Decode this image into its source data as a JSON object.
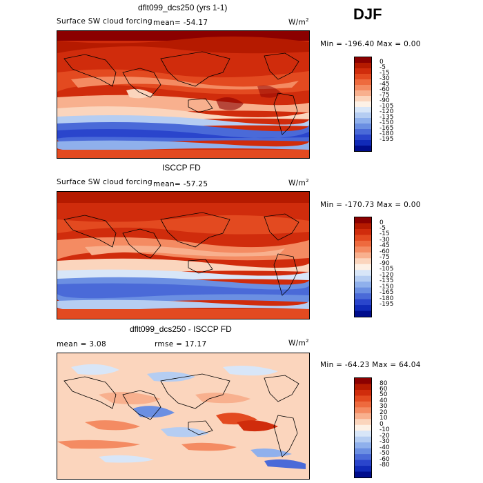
{
  "season": "DJF",
  "panels": [
    {
      "title": "dflt099_dcs250 (yrs 1-1)",
      "variable": "Surface SW cloud forcing",
      "mean_text": "mean=  -54.17",
      "units": "W/m",
      "minmax": "Min = -196.40 Max =    0.00",
      "colorbar_labels": [
        "0",
        "-5",
        "-15",
        "-30",
        "-45",
        "-60",
        "-75",
        "-90",
        "-105",
        "-120",
        "-135",
        "-150",
        "-165",
        "-180",
        "-195"
      ],
      "colors": [
        "#8b0000",
        "#b51a00",
        "#d02c0c",
        "#e34a20",
        "#ee6a3e",
        "#f48b62",
        "#f8b08e",
        "#fbd5bd",
        "#fdf1e6",
        "#d8e6f8",
        "#b5cdf2",
        "#8fb0ec",
        "#6b8fe2",
        "#4a6ad8",
        "#2a45cc",
        "#102ab8",
        "#000d8c"
      ]
    },
    {
      "title": "ISCCP FD",
      "variable": "Surface SW cloud forcing",
      "mean_text": "mean=  -57.25",
      "units": "W/m",
      "minmax": "Min = -170.73 Max =    0.00",
      "colorbar_labels": [
        "0",
        "-5",
        "-15",
        "-30",
        "-45",
        "-60",
        "-75",
        "-90",
        "-105",
        "-120",
        "-135",
        "-150",
        "-165",
        "-180",
        "-195"
      ],
      "colors": [
        "#8b0000",
        "#b51a00",
        "#d02c0c",
        "#e34a20",
        "#ee6a3e",
        "#f48b62",
        "#f8b08e",
        "#fbd5bd",
        "#fdf1e6",
        "#d8e6f8",
        "#b5cdf2",
        "#8fb0ec",
        "#6b8fe2",
        "#4a6ad8",
        "#2a45cc",
        "#102ab8",
        "#000d8c"
      ]
    },
    {
      "title": "dflt099_dcs250 - ISCCP FD",
      "mean_text": "mean =    3.08",
      "rmse_text": "rmse =   17.17",
      "units": "W/m",
      "minmax": "Min = -64.23 Max =  64.04",
      "colorbar_labels": [
        "80",
        "60",
        "50",
        "40",
        "30",
        "20",
        "10",
        "0",
        "-10",
        "-20",
        "-30",
        "-40",
        "-50",
        "-60",
        "-80"
      ],
      "colors": [
        "#8b0000",
        "#b51a00",
        "#d02c0c",
        "#e34a20",
        "#ee6a3e",
        "#f48b62",
        "#f8b08e",
        "#fbd5bd",
        "#fdf1e6",
        "#d8e6f8",
        "#b5cdf2",
        "#8fb0ec",
        "#6b8fe2",
        "#4a6ad8",
        "#2a45cc",
        "#102ab8",
        "#000d8c"
      ]
    }
  ],
  "chart_data": [
    {
      "type": "heatmap",
      "title": "dflt099_dcs250 (yrs 1-1)",
      "field": "Surface SW cloud forcing",
      "units": "W/m2",
      "mean": -54.17,
      "min": -196.4,
      "max": 0.0,
      "contour_levels": [
        0,
        -5,
        -15,
        -30,
        -45,
        -60,
        -75,
        -90,
        -105,
        -120,
        -135,
        -150,
        -165,
        -180,
        -195
      ]
    },
    {
      "type": "heatmap",
      "title": "ISCCP FD",
      "field": "Surface SW cloud forcing",
      "units": "W/m2",
      "mean": -57.25,
      "min": -170.73,
      "max": 0.0,
      "contour_levels": [
        0,
        -5,
        -15,
        -30,
        -45,
        -60,
        -75,
        -90,
        -105,
        -120,
        -135,
        -150,
        -165,
        -180,
        -195
      ]
    },
    {
      "type": "heatmap",
      "title": "dflt099_dcs250 - ISCCP FD",
      "units": "W/m2",
      "mean": 3.08,
      "rmse": 17.17,
      "min": -64.23,
      "max": 64.04,
      "contour_levels": [
        80,
        60,
        50,
        40,
        30,
        20,
        10,
        0,
        -10,
        -20,
        -30,
        -40,
        -50,
        -60,
        -80
      ]
    }
  ]
}
